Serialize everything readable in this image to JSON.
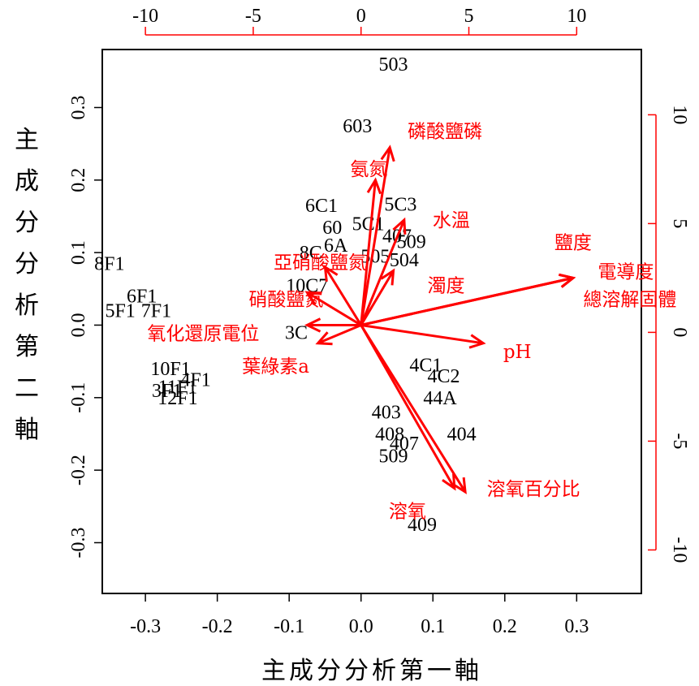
{
  "chart_data": {
    "type": "scatter",
    "subtype": "biplot",
    "xlabel": "主成分分析第一軸",
    "ylabel": "主成分分析第二軸",
    "xlim": [
      -0.36,
      0.39
    ],
    "ylim": [
      -0.37,
      0.38
    ],
    "x_ticks": [
      "-0.3",
      "-0.2",
      "-0.1",
      "0.0",
      "0.1",
      "0.2",
      "0.3"
    ],
    "y_ticks": [
      "-0.3",
      "-0.2",
      "-0.1",
      "0.0",
      "0.1",
      "0.2",
      "0.3"
    ],
    "top_axis": {
      "lim": [
        -12,
        13
      ],
      "ticks": [
        "-10",
        "-5",
        "0",
        "5",
        "10"
      ],
      "color": "#ff0000"
    },
    "right_axis": {
      "lim": [
        -12,
        13
      ],
      "ticks": [
        "-10",
        "-5",
        "0",
        "5",
        "10"
      ],
      "color": "#ff0000"
    },
    "observations": [
      {
        "label": "503",
        "x": 0.045,
        "y": 0.36
      },
      {
        "label": "603",
        "x": -0.005,
        "y": 0.275
      },
      {
        "label": "6C1",
        "x": -0.055,
        "y": 0.165
      },
      {
        "label": "5C3",
        "x": 0.055,
        "y": 0.167
      },
      {
        "label": "60",
        "x": -0.04,
        "y": 0.135
      },
      {
        "label": "5C1",
        "x": 0.01,
        "y": 0.14
      },
      {
        "label": "407",
        "x": 0.05,
        "y": 0.123
      },
      {
        "label": "509",
        "x": 0.07,
        "y": 0.115
      },
      {
        "label": "8C",
        "x": -0.07,
        "y": 0.1
      },
      {
        "label": "6A",
        "x": -0.035,
        "y": 0.11
      },
      {
        "label": "505",
        "x": 0.02,
        "y": 0.095
      },
      {
        "label": "504",
        "x": 0.06,
        "y": 0.09
      },
      {
        "label": "10C7",
        "x": -0.075,
        "y": 0.055
      },
      {
        "label": "3C",
        "x": -0.09,
        "y": -0.01
      },
      {
        "label": "8F1",
        "x": -0.35,
        "y": 0.085
      },
      {
        "label": "6F1",
        "x": -0.305,
        "y": 0.04
      },
      {
        "label": "5F1",
        "x": -0.335,
        "y": 0.02
      },
      {
        "label": "7F1",
        "x": -0.285,
        "y": 0.02
      },
      {
        "label": "10F1",
        "x": -0.265,
        "y": -0.06
      },
      {
        "label": "11F1",
        "x": -0.255,
        "y": -0.085
      },
      {
        "label": "3F1",
        "x": -0.27,
        "y": -0.09
      },
      {
        "label": "4F1",
        "x": -0.23,
        "y": -0.075
      },
      {
        "label": "12F1",
        "x": -0.255,
        "y": -0.1
      },
      {
        "label": "4C1",
        "x": 0.09,
        "y": -0.055
      },
      {
        "label": "4C2",
        "x": 0.115,
        "y": -0.07
      },
      {
        "label": "44A",
        "x": 0.11,
        "y": -0.1
      },
      {
        "label": "404",
        "x": 0.14,
        "y": -0.15
      },
      {
        "label": "403",
        "x": 0.035,
        "y": -0.12
      },
      {
        "label": "408",
        "x": 0.04,
        "y": -0.15
      },
      {
        "label": "407",
        "x": 0.06,
        "y": -0.163
      },
      {
        "label": "409",
        "x": 0.085,
        "y": -0.275
      },
      {
        "label": "509",
        "x": 0.045,
        "y": -0.18
      }
    ],
    "variables": [
      {
        "label": "磷酸鹽磷",
        "x": 0.04,
        "y": 0.245
      },
      {
        "label": "氨氮",
        "x": 0.02,
        "y": 0.2
      },
      {
        "label": "水溫",
        "x": 0.06,
        "y": 0.145
      },
      {
        "label": "亞硝酸鹽氮",
        "x": -0.05,
        "y": 0.08
      },
      {
        "label": "硝酸鹽氮",
        "x": -0.075,
        "y": 0.045
      },
      {
        "label": "濁度",
        "x": 0.045,
        "y": 0.075
      },
      {
        "label": "鹽度",
        "x": 0.295,
        "y": 0.065
      },
      {
        "label": "電導度",
        "x": 0.295,
        "y": 0.065
      },
      {
        "label": "總溶解固體",
        "x": 0.295,
        "y": 0.065
      },
      {
        "label": "pH",
        "x": 0.17,
        "y": -0.025
      },
      {
        "label": "氧化還原電位",
        "x": -0.075,
        "y": 0.0
      },
      {
        "label": "葉綠素a",
        "x": -0.06,
        "y": -0.025
      },
      {
        "label": "溶氧百分比",
        "x": 0.145,
        "y": -0.23
      },
      {
        "label": "溶氧",
        "x": 0.13,
        "y": -0.225
      }
    ],
    "grid": false,
    "legend": "none"
  },
  "colors": {
    "variables": "#ff0000",
    "observations": "#000000",
    "frame": "#000000"
  }
}
